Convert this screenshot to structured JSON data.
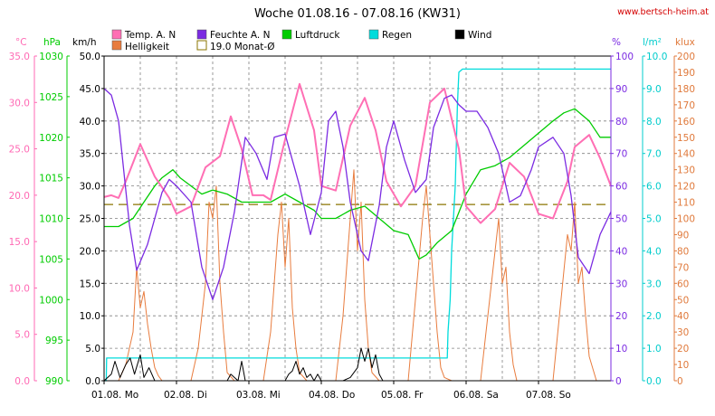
{
  "chart_data": {
    "type": "line",
    "title": "Woche 01.08.16 - 07.08.16 (KW31)",
    "website": "www.bertsch-heim.at",
    "x_day_labels": [
      "01.08.  Mo",
      "02.08.  Di",
      "03.08.  Mi",
      "04.08.  Do",
      "05.08.  Fr",
      "06.08.  Sa",
      "07.08.  So"
    ],
    "x_range_days": [
      0,
      7
    ],
    "units": {
      "temp": "°C",
      "pressure": "hPa",
      "wind": "km/h",
      "humidity": "%",
      "rain": "l/m²",
      "light": "klux"
    },
    "axes": {
      "temp": {
        "min": 0,
        "max": 35,
        "ticks": [
          "0.0",
          "5.0",
          "10.0",
          "15.0",
          "20.0",
          "25.0",
          "30.0",
          "35.0"
        ],
        "color": "#ff69b4"
      },
      "pressure": {
        "min": 990,
        "max": 1030,
        "ticks": [
          "990",
          "995",
          "1000",
          "1005",
          "1010",
          "1015",
          "1020",
          "1025",
          "1030"
        ],
        "color": "#00cc00"
      },
      "wind": {
        "min": 0,
        "max": 50,
        "ticks": [
          "0.0",
          "5.0",
          "10.0",
          "15.0",
          "20.0",
          "25.0",
          "30.0",
          "35.0",
          "40.0",
          "45.0",
          "50.0"
        ],
        "color": "#000000"
      },
      "humidity": {
        "min": 0,
        "max": 100,
        "ticks": [
          "0",
          "10",
          "20",
          "30",
          "40",
          "50",
          "60",
          "70",
          "80",
          "90",
          "100"
        ],
        "color": "#7b2be2"
      },
      "rain": {
        "min": 0,
        "max": 10,
        "ticks": [
          "0.0",
          "1.0",
          "2.0",
          "3.0",
          "4.0",
          "5.0",
          "6.0",
          "7.0",
          "8.0",
          "9.0",
          "10.0"
        ],
        "color": "#00cccc"
      },
      "light": {
        "min": 0,
        "max": 200,
        "ticks": [
          "0",
          "10",
          "20",
          "30",
          "40",
          "50",
          "60",
          "70",
          "80",
          "90",
          "100",
          "110",
          "120",
          "130",
          "140",
          "150",
          "160",
          "170",
          "180",
          "190",
          "200"
        ],
        "color": "#e07a3c"
      }
    },
    "grid": true,
    "legend": [
      {
        "name": "Temp. A. N",
        "color": "#ff6fb4",
        "style": "box"
      },
      {
        "name": "Helligkeit",
        "color": "#e87c3e",
        "style": "box"
      },
      {
        "name": "Feuchte A. N",
        "color": "#7b2be2",
        "style": "box"
      },
      {
        "name": "19.0 Monat-Ø",
        "color": "#8b7500",
        "style": "outline"
      },
      {
        "name": "Luftdruck",
        "color": "#00cc00",
        "style": "box"
      },
      {
        "name": "Regen",
        "color": "#00dcdc",
        "style": "box"
      },
      {
        "name": "Wind",
        "color": "#000000",
        "style": "box"
      }
    ],
    "monthly_mean_temp": 19.0,
    "series": [
      {
        "name": "Temp. A. N",
        "axis": "temp",
        "color": "#ff6fb4",
        "x": [
          0,
          0.1,
          0.2,
          0.3,
          0.5,
          0.7,
          0.9,
          1.0,
          1.2,
          1.4,
          1.6,
          1.75,
          1.9,
          2.05,
          2.2,
          2.3,
          2.5,
          2.7,
          2.9,
          3.0,
          3.2,
          3.4,
          3.6,
          3.75,
          3.9,
          4.1,
          4.3,
          4.5,
          4.7,
          4.9,
          5.0,
          5.2,
          5.4,
          5.6,
          5.8,
          6.0,
          6.2,
          6.4,
          6.5,
          6.7,
          6.85,
          7.0
        ],
        "y": [
          19.8,
          20.0,
          19.7,
          21.5,
          25.5,
          22.0,
          19.7,
          18.0,
          18.8,
          23.0,
          24.2,
          28.5,
          25.0,
          20.0,
          20.0,
          19.5,
          26.0,
          32.0,
          27.0,
          21.0,
          20.5,
          27.5,
          30.5,
          27.0,
          21.5,
          18.8,
          21.0,
          30.0,
          31.5,
          25.0,
          18.8,
          17.0,
          18.5,
          23.5,
          22.0,
          18.0,
          17.5,
          21.5,
          25.2,
          26.5,
          24.0,
          21.0
        ]
      },
      {
        "name": "Feuchte A. N",
        "axis": "humidity",
        "color": "#7b2be2",
        "x": [
          0,
          0.1,
          0.2,
          0.35,
          0.45,
          0.6,
          0.8,
          0.9,
          1.0,
          1.2,
          1.35,
          1.5,
          1.65,
          1.8,
          1.95,
          2.1,
          2.25,
          2.35,
          2.5,
          2.7,
          2.85,
          3.0,
          3.1,
          3.2,
          3.3,
          3.4,
          3.55,
          3.65,
          3.8,
          3.9,
          4.0,
          4.15,
          4.3,
          4.45,
          4.55,
          4.7,
          4.8,
          4.9,
          5.0,
          5.05,
          5.15,
          5.3,
          5.45,
          5.6,
          5.75,
          5.9,
          6.0,
          6.2,
          6.35,
          6.45,
          6.55,
          6.7,
          6.85,
          7.0
        ],
        "y": [
          90,
          88,
          80,
          48,
          34,
          42,
          58,
          62,
          60,
          55,
          35,
          25,
          35,
          52,
          75,
          70,
          62,
          75,
          76,
          60,
          45,
          58,
          80,
          83,
          72,
          55,
          40,
          37,
          54,
          72,
          80,
          68,
          58,
          62,
          78,
          87,
          88,
          85,
          83,
          83,
          83,
          78,
          70,
          55,
          57,
          65,
          72,
          75,
          70,
          57,
          38,
          33,
          45,
          52
        ]
      },
      {
        "name": "Luftdruck",
        "axis": "pressure",
        "color": "#00cc00",
        "x": [
          0,
          0.2,
          0.4,
          0.55,
          0.7,
          0.8,
          0.95,
          1.05,
          1.2,
          1.35,
          1.5,
          1.7,
          1.9,
          2.1,
          2.3,
          2.5,
          2.7,
          2.9,
          3.0,
          3.2,
          3.4,
          3.6,
          3.8,
          4.0,
          4.2,
          4.35,
          4.45,
          4.6,
          4.8,
          5.0,
          5.2,
          5.4,
          5.6,
          5.8,
          6.0,
          6.2,
          6.35,
          6.5,
          6.7,
          6.85,
          7.0
        ],
        "y": [
          1009,
          1009,
          1010,
          1012,
          1014,
          1015,
          1016,
          1015,
          1014,
          1013,
          1013.5,
          1013,
          1012,
          1012,
          1012,
          1013,
          1012,
          1011,
          1010,
          1010,
          1011,
          1011.5,
          1010,
          1008.5,
          1008,
          1005,
          1005.5,
          1007,
          1008.5,
          1013,
          1016,
          1016.5,
          1017.5,
          1019,
          1020.5,
          1022,
          1023,
          1023.5,
          1022,
          1020,
          1020
        ]
      },
      {
        "name": "Wind",
        "axis": "wind",
        "color": "#000000",
        "x": [
          0,
          0.1,
          0.15,
          0.22,
          0.3,
          0.36,
          0.42,
          0.5,
          0.55,
          0.62,
          0.7,
          0.8,
          0.9,
          1.0,
          1.1,
          1.2,
          1.3,
          1.4,
          1.5,
          1.6,
          1.7,
          1.75,
          1.8,
          1.85,
          1.9,
          1.95,
          2.0,
          2.1,
          2.2,
          2.3,
          2.4,
          2.5,
          2.55,
          2.6,
          2.65,
          2.7,
          2.75,
          2.8,
          2.85,
          2.9,
          2.95,
          3.0,
          3.05,
          3.1,
          3.2,
          3.3,
          3.4,
          3.5,
          3.55,
          3.6,
          3.65,
          3.7,
          3.75,
          3.8,
          3.85,
          3.9,
          3.95,
          4.0,
          4.05,
          4.1,
          4.2,
          4.25,
          4.3,
          4.4,
          4.45,
          4.5,
          4.55,
          4.6,
          4.65,
          4.7,
          4.8,
          5.0,
          5.2,
          5.35,
          5.45,
          5.5,
          5.55,
          5.6,
          5.65,
          5.7,
          5.75,
          5.8,
          5.9,
          6.0,
          6.1,
          6.2,
          6.3,
          6.35,
          6.4,
          6.45,
          6.5,
          6.55,
          6.6,
          6.7,
          6.8,
          6.9,
          7.0
        ],
        "y": [
          0,
          1,
          3,
          0.5,
          2.5,
          3.5,
          1,
          4,
          0.5,
          2,
          0,
          0,
          0,
          0,
          0,
          0,
          0,
          0,
          0,
          0,
          0,
          1,
          0.5,
          0,
          3,
          0,
          0,
          0,
          0,
          0,
          0,
          0,
          1,
          1.5,
          3,
          1,
          2,
          0.5,
          1,
          0,
          1,
          0,
          0,
          0,
          0,
          0,
          0.5,
          2,
          5,
          3,
          5,
          2,
          4,
          1,
          0,
          0,
          0,
          0,
          0,
          0,
          0,
          0,
          0,
          0,
          0,
          0,
          0,
          0,
          0,
          0,
          0,
          0,
          0,
          0,
          0,
          0,
          0,
          0,
          0,
          0,
          0,
          0,
          0,
          0,
          0,
          0,
          0,
          0,
          0,
          0,
          0,
          0,
          0,
          0,
          0,
          0,
          0
        ]
      },
      {
        "name": "Regen",
        "axis": "rain",
        "color": "#00dcdc",
        "x": [
          0,
          0.03,
          0.035,
          4.74,
          4.75,
          4.78,
          4.8,
          4.85,
          4.88,
          4.9,
          4.95,
          5.0,
          7.0
        ],
        "y": [
          0,
          0,
          0.7,
          0.7,
          1.5,
          2.5,
          4.0,
          6.0,
          8.5,
          9.5,
          9.6,
          9.6,
          9.6
        ]
      },
      {
        "name": "Helligkeit",
        "axis": "light",
        "color": "#e87c3e",
        "x": [
          0,
          0.2,
          0.3,
          0.4,
          0.45,
          0.5,
          0.55,
          0.6,
          0.65,
          0.7,
          0.75,
          0.8,
          1.0,
          1.2,
          1.3,
          1.4,
          1.45,
          1.5,
          1.55,
          1.6,
          1.65,
          1.7,
          1.8,
          2.0,
          2.2,
          2.3,
          2.4,
          2.45,
          2.5,
          2.55,
          2.6,
          2.65,
          2.7,
          2.8,
          3.0,
          3.2,
          3.3,
          3.4,
          3.45,
          3.5,
          3.55,
          3.6,
          3.65,
          3.7,
          3.8,
          4.0,
          4.2,
          4.3,
          4.4,
          4.45,
          4.5,
          4.55,
          4.6,
          4.65,
          4.7,
          4.8,
          5.0,
          5.2,
          5.3,
          5.4,
          5.45,
          5.5,
          5.55,
          5.6,
          5.65,
          5.7,
          5.8,
          6.0,
          6.2,
          6.3,
          6.4,
          6.45,
          6.5,
          6.55,
          6.6,
          6.65,
          6.7,
          6.8,
          7.0
        ],
        "y": [
          0,
          0,
          10,
          30,
          70,
          45,
          55,
          35,
          20,
          8,
          3,
          0,
          0,
          0,
          20,
          60,
          110,
          100,
          120,
          60,
          30,
          5,
          0,
          0,
          0,
          30,
          90,
          110,
          70,
          100,
          45,
          20,
          5,
          0,
          0,
          0,
          40,
          100,
          130,
          80,
          110,
          50,
          20,
          5,
          0,
          0,
          0,
          50,
          100,
          120,
          90,
          60,
          30,
          8,
          2,
          0,
          0,
          0,
          40,
          80,
          100,
          60,
          70,
          30,
          10,
          0,
          0,
          0,
          0,
          45,
          90,
          80,
          110,
          60,
          70,
          40,
          15,
          0,
          0
        ]
      }
    ]
  }
}
